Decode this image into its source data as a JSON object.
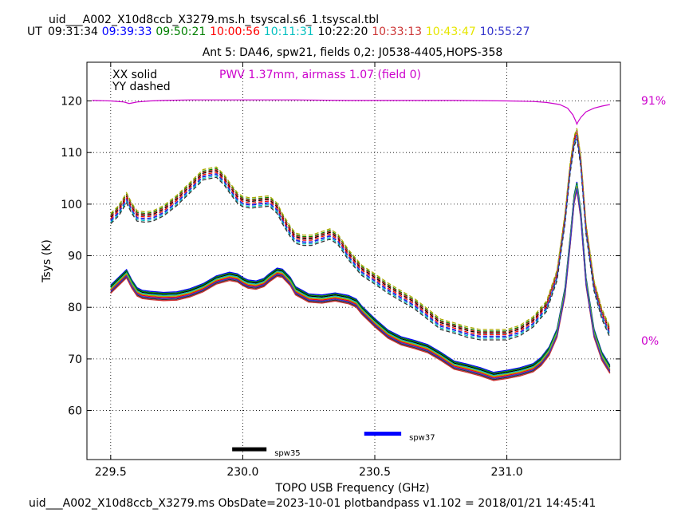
{
  "header": {
    "file": "uid___A002_X10d8ccb_X3279.ms.h_tsyscal.s6_1.tsyscal.tbl",
    "ut_label": "UT",
    "times": [
      {
        "text": "09:31:34",
        "color": "#000000"
      },
      {
        "text": "09:39:33",
        "color": "#0000ff"
      },
      {
        "text": "09:50:21",
        "color": "#008000"
      },
      {
        "text": "10:00:56",
        "color": "#ff0000"
      },
      {
        "text": "10:11:31",
        "color": "#00bfbf"
      },
      {
        "text": "10:22:20",
        "color": "#000000"
      },
      {
        "text": "10:33:13",
        "color": "#cc3333"
      },
      {
        "text": "10:43:47",
        "color": "#e6e600"
      },
      {
        "text": "10:55:27",
        "color": "#3333cc"
      }
    ]
  },
  "chart_data": {
    "type": "line",
    "title": "Ant 5: DA46,  spw21,  fields 0,2: J0538-4405,HOPS-358",
    "xlabel": "TOPO USB Frequency (GHz)",
    "ylabel": "Tsys (K)",
    "xlim": [
      229.41,
      231.43
    ],
    "ylim": [
      50.5,
      127.5
    ],
    "xticks": [
      229.5,
      230.0,
      230.5,
      231.0
    ],
    "xtick_labels": [
      "229.5",
      "230.0",
      "230.5",
      "231.0"
    ],
    "yticks": [
      60,
      70,
      80,
      90,
      100,
      110,
      120
    ],
    "grid": true,
    "legend": {
      "xx": "XX solid",
      "yy": "YY dashed"
    },
    "pwv_label": "PWV 1.37mm, airmass 1.07 (field 0)",
    "pwv_color": "#cc00cc",
    "right_labels": {
      "top": "91%",
      "bottom": "0%"
    },
    "xx_curve": {
      "x": [
        229.5,
        229.53,
        229.56,
        229.58,
        229.6,
        229.62,
        229.65,
        229.7,
        229.75,
        229.8,
        229.85,
        229.9,
        229.95,
        229.98,
        230.0,
        230.02,
        230.05,
        230.08,
        230.1,
        230.13,
        230.15,
        230.18,
        230.2,
        230.25,
        230.3,
        230.35,
        230.4,
        230.43,
        230.45,
        230.5,
        230.55,
        230.6,
        230.65,
        230.7,
        230.75,
        230.8,
        230.85,
        230.9,
        230.95,
        231.0,
        231.05,
        231.1,
        231.13,
        231.16,
        231.19,
        231.22,
        231.24,
        231.255,
        231.265,
        231.28,
        231.3,
        231.33,
        231.36,
        231.39
      ],
      "y": [
        83.5,
        85.0,
        86.5,
        84.5,
        83.0,
        82.5,
        82.3,
        82.1,
        82.2,
        82.8,
        83.8,
        85.3,
        86.0,
        85.7,
        85.0,
        84.5,
        84.3,
        84.8,
        85.7,
        86.8,
        86.6,
        85.0,
        83.2,
        81.8,
        81.6,
        82.0,
        81.5,
        80.8,
        79.5,
        77.0,
        74.8,
        73.5,
        72.8,
        72.0,
        70.5,
        68.8,
        68.2,
        67.5,
        66.6,
        67.0,
        67.5,
        68.3,
        69.5,
        71.5,
        75.0,
        83.0,
        93.0,
        101.0,
        103.5,
        98.0,
        85.0,
        75.0,
        70.5,
        68.0
      ],
      "color_order": [
        "#000000",
        "#0000ff",
        "#008000",
        "#ff0000",
        "#00bfbf",
        "#333333",
        "#cc3333",
        "#aaaa00",
        "#3333cc"
      ],
      "offsets": [
        0.4,
        0.8,
        0.6,
        -0.2,
        0.2,
        -0.6,
        -0.8,
        0.0,
        -0.4
      ]
    },
    "yy_curve": {
      "x": [
        229.5,
        229.53,
        229.56,
        229.58,
        229.6,
        229.63,
        229.66,
        229.7,
        229.75,
        229.8,
        229.85,
        229.9,
        229.93,
        229.95,
        229.98,
        230.0,
        230.03,
        230.06,
        230.1,
        230.13,
        230.15,
        230.18,
        230.2,
        230.23,
        230.26,
        230.3,
        230.33,
        230.36,
        230.4,
        230.45,
        230.5,
        230.55,
        230.6,
        230.65,
        230.7,
        230.75,
        230.8,
        230.85,
        230.9,
        230.95,
        231.0,
        231.05,
        231.1,
        231.15,
        231.19,
        231.22,
        231.24,
        231.255,
        231.265,
        231.28,
        231.3,
        231.33,
        231.36,
        231.39
      ],
      "y": [
        97.0,
        98.5,
        101.0,
        99.0,
        97.5,
        97.3,
        97.5,
        98.5,
        100.5,
        103.0,
        105.5,
        106.0,
        104.5,
        103.0,
        101.0,
        100.3,
        100.0,
        100.2,
        100.4,
        99.0,
        97.0,
        94.5,
        93.2,
        92.8,
        92.8,
        93.5,
        94.0,
        93.0,
        90.0,
        87.0,
        85.3,
        83.5,
        82.0,
        80.5,
        78.5,
        76.5,
        75.8,
        75.0,
        74.5,
        74.5,
        74.5,
        75.3,
        77.0,
        80.0,
        86.0,
        97.0,
        107.0,
        112.0,
        113.5,
        108.0,
        95.0,
        84.0,
        78.5,
        75.0
      ],
      "color_order": [
        "#000000",
        "#0000ff",
        "#008000",
        "#ff0000",
        "#00bfbf",
        "#333333",
        "#cc3333",
        "#aaaa00",
        "#3333cc"
      ],
      "offsets": [
        0.5,
        -0.2,
        0.9,
        0.2,
        -0.5,
        -0.8,
        0.7,
        1.2,
        -0.1
      ]
    },
    "atmosphere": {
      "x": [
        229.43,
        229.5,
        229.55,
        229.57,
        229.58,
        229.6,
        229.65,
        229.7,
        229.8,
        229.9,
        230.0,
        230.2,
        230.4,
        230.6,
        230.8,
        231.0,
        231.1,
        231.15,
        231.2,
        231.23,
        231.25,
        231.26,
        231.265,
        231.27,
        231.28,
        231.3,
        231.33,
        231.36,
        231.39
      ],
      "y": [
        120.1,
        120.0,
        119.8,
        119.5,
        119.6,
        119.8,
        120.0,
        120.1,
        120.2,
        120.2,
        120.2,
        120.2,
        120.1,
        120.1,
        120.1,
        120.0,
        119.9,
        119.7,
        119.3,
        118.6,
        117.3,
        116.2,
        115.5,
        116.0,
        116.8,
        117.9,
        118.6,
        119.0,
        119.3
      ]
    },
    "spw_markers": [
      {
        "label": "spw35",
        "x_start": 229.96,
        "x_end": 230.09,
        "y": 52.5,
        "color": "#000000"
      },
      {
        "label": "spw37",
        "x_start": 230.46,
        "x_end": 230.6,
        "y": 55.5,
        "color": "#0000ff"
      }
    ]
  },
  "footer": {
    "text": "uid___A002_X10d8ccb_X3279.ms  ObsDate=2023-10-01   plotbandpass v1.102 = 2018/01/21 14:45:41"
  }
}
